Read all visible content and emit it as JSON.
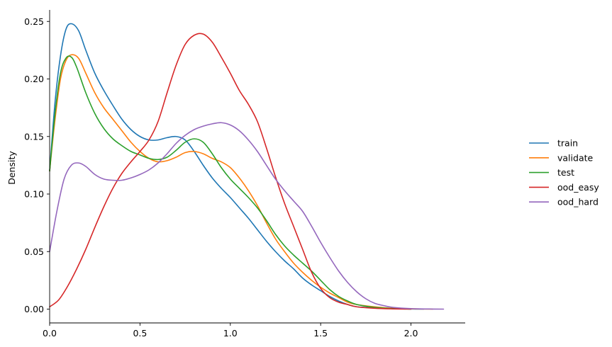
{
  "chart_data": {
    "type": "line",
    "title": "",
    "xlabel": "",
    "ylabel": "Density",
    "xlim": [
      0.0,
      2.3
    ],
    "ylim": [
      -0.012,
      0.26
    ],
    "xticks": [
      0.0,
      0.5,
      1.0,
      1.5,
      2.0
    ],
    "xtick_labels": [
      "0.0",
      "0.5",
      "1.0",
      "1.5",
      "2.0"
    ],
    "yticks": [
      0.0,
      0.05,
      0.1,
      0.15,
      0.2,
      0.25
    ],
    "ytick_labels": [
      "0.00",
      "0.05",
      "0.10",
      "0.15",
      "0.20",
      "0.25"
    ],
    "grid": false,
    "legend_position": "right",
    "series": [
      {
        "name": "train",
        "color": "#1f77b4",
        "points": [
          [
            0.0,
            0.12
          ],
          [
            0.03,
            0.18
          ],
          [
            0.06,
            0.22
          ],
          [
            0.09,
            0.243
          ],
          [
            0.12,
            0.248
          ],
          [
            0.16,
            0.242
          ],
          [
            0.2,
            0.225
          ],
          [
            0.25,
            0.205
          ],
          [
            0.3,
            0.19
          ],
          [
            0.35,
            0.177
          ],
          [
            0.4,
            0.165
          ],
          [
            0.45,
            0.156
          ],
          [
            0.5,
            0.15
          ],
          [
            0.55,
            0.147
          ],
          [
            0.6,
            0.147
          ],
          [
            0.65,
            0.149
          ],
          [
            0.7,
            0.15
          ],
          [
            0.75,
            0.147
          ],
          [
            0.8,
            0.137
          ],
          [
            0.85,
            0.125
          ],
          [
            0.9,
            0.114
          ],
          [
            0.95,
            0.105
          ],
          [
            1.0,
            0.097
          ],
          [
            1.05,
            0.088
          ],
          [
            1.1,
            0.079
          ],
          [
            1.15,
            0.069
          ],
          [
            1.2,
            0.059
          ],
          [
            1.25,
            0.05
          ],
          [
            1.3,
            0.042
          ],
          [
            1.35,
            0.035
          ],
          [
            1.4,
            0.027
          ],
          [
            1.45,
            0.021
          ],
          [
            1.5,
            0.016
          ],
          [
            1.55,
            0.011
          ],
          [
            1.6,
            0.007
          ],
          [
            1.65,
            0.004
          ],
          [
            1.7,
            0.002
          ],
          [
            1.8,
            0.001
          ],
          [
            1.9,
            0.0005
          ],
          [
            2.0,
            0.0001
          ],
          [
            2.07,
            0.0
          ]
        ]
      },
      {
        "name": "validate",
        "color": "#ff7f0e",
        "points": [
          [
            0.0,
            0.12
          ],
          [
            0.03,
            0.165
          ],
          [
            0.06,
            0.2
          ],
          [
            0.09,
            0.216
          ],
          [
            0.12,
            0.221
          ],
          [
            0.16,
            0.218
          ],
          [
            0.2,
            0.205
          ],
          [
            0.25,
            0.188
          ],
          [
            0.3,
            0.175
          ],
          [
            0.35,
            0.165
          ],
          [
            0.4,
            0.155
          ],
          [
            0.45,
            0.145
          ],
          [
            0.5,
            0.137
          ],
          [
            0.55,
            0.131
          ],
          [
            0.6,
            0.128
          ],
          [
            0.65,
            0.129
          ],
          [
            0.7,
            0.132
          ],
          [
            0.75,
            0.136
          ],
          [
            0.8,
            0.137
          ],
          [
            0.85,
            0.135
          ],
          [
            0.9,
            0.131
          ],
          [
            0.95,
            0.128
          ],
          [
            1.0,
            0.123
          ],
          [
            1.05,
            0.114
          ],
          [
            1.1,
            0.103
          ],
          [
            1.15,
            0.09
          ],
          [
            1.2,
            0.075
          ],
          [
            1.25,
            0.061
          ],
          [
            1.3,
            0.05
          ],
          [
            1.35,
            0.04
          ],
          [
            1.4,
            0.032
          ],
          [
            1.45,
            0.025
          ],
          [
            1.5,
            0.019
          ],
          [
            1.55,
            0.014
          ],
          [
            1.6,
            0.01
          ],
          [
            1.65,
            0.006
          ],
          [
            1.7,
            0.004
          ],
          [
            1.8,
            0.002
          ],
          [
            1.9,
            0.0007
          ],
          [
            2.0,
            0.0002
          ],
          [
            2.12,
            0.0
          ]
        ]
      },
      {
        "name": "test",
        "color": "#2ca02c",
        "points": [
          [
            0.0,
            0.12
          ],
          [
            0.03,
            0.17
          ],
          [
            0.06,
            0.205
          ],
          [
            0.09,
            0.218
          ],
          [
            0.12,
            0.219
          ],
          [
            0.15,
            0.21
          ],
          [
            0.2,
            0.188
          ],
          [
            0.25,
            0.17
          ],
          [
            0.3,
            0.157
          ],
          [
            0.35,
            0.148
          ],
          [
            0.4,
            0.142
          ],
          [
            0.45,
            0.137
          ],
          [
            0.5,
            0.134
          ],
          [
            0.55,
            0.131
          ],
          [
            0.6,
            0.13
          ],
          [
            0.65,
            0.132
          ],
          [
            0.7,
            0.138
          ],
          [
            0.75,
            0.145
          ],
          [
            0.8,
            0.148
          ],
          [
            0.85,
            0.145
          ],
          [
            0.9,
            0.135
          ],
          [
            0.95,
            0.123
          ],
          [
            1.0,
            0.113
          ],
          [
            1.05,
            0.105
          ],
          [
            1.1,
            0.097
          ],
          [
            1.15,
            0.088
          ],
          [
            1.2,
            0.077
          ],
          [
            1.25,
            0.065
          ],
          [
            1.3,
            0.055
          ],
          [
            1.35,
            0.047
          ],
          [
            1.4,
            0.04
          ],
          [
            1.45,
            0.033
          ],
          [
            1.5,
            0.025
          ],
          [
            1.55,
            0.017
          ],
          [
            1.6,
            0.011
          ],
          [
            1.65,
            0.007
          ],
          [
            1.7,
            0.004
          ],
          [
            1.8,
            0.0015
          ],
          [
            1.9,
            0.0005
          ],
          [
            2.0,
            0.0
          ]
        ]
      },
      {
        "name": "ood_easy",
        "color": "#d62728",
        "points": [
          [
            0.0,
            0.002
          ],
          [
            0.05,
            0.008
          ],
          [
            0.1,
            0.02
          ],
          [
            0.15,
            0.035
          ],
          [
            0.2,
            0.052
          ],
          [
            0.25,
            0.071
          ],
          [
            0.3,
            0.089
          ],
          [
            0.35,
            0.105
          ],
          [
            0.4,
            0.118
          ],
          [
            0.45,
            0.128
          ],
          [
            0.5,
            0.137
          ],
          [
            0.55,
            0.147
          ],
          [
            0.6,
            0.163
          ],
          [
            0.65,
            0.188
          ],
          [
            0.7,
            0.212
          ],
          [
            0.75,
            0.23
          ],
          [
            0.8,
            0.238
          ],
          [
            0.85,
            0.239
          ],
          [
            0.9,
            0.232
          ],
          [
            0.95,
            0.219
          ],
          [
            1.0,
            0.205
          ],
          [
            1.05,
            0.19
          ],
          [
            1.1,
            0.178
          ],
          [
            1.15,
            0.163
          ],
          [
            1.2,
            0.14
          ],
          [
            1.25,
            0.115
          ],
          [
            1.3,
            0.092
          ],
          [
            1.35,
            0.072
          ],
          [
            1.4,
            0.052
          ],
          [
            1.45,
            0.032
          ],
          [
            1.5,
            0.018
          ],
          [
            1.55,
            0.01
          ],
          [
            1.6,
            0.006
          ],
          [
            1.65,
            0.004
          ],
          [
            1.7,
            0.002
          ],
          [
            1.8,
            0.0007
          ],
          [
            1.9,
            0.0002
          ],
          [
            2.0,
            0.0
          ]
        ]
      },
      {
        "name": "ood_hard",
        "color": "#9467bd",
        "points": [
          [
            0.0,
            0.05
          ],
          [
            0.04,
            0.085
          ],
          [
            0.08,
            0.113
          ],
          [
            0.12,
            0.125
          ],
          [
            0.16,
            0.127
          ],
          [
            0.2,
            0.124
          ],
          [
            0.25,
            0.117
          ],
          [
            0.3,
            0.113
          ],
          [
            0.35,
            0.112
          ],
          [
            0.4,
            0.112
          ],
          [
            0.45,
            0.114
          ],
          [
            0.5,
            0.117
          ],
          [
            0.55,
            0.121
          ],
          [
            0.6,
            0.127
          ],
          [
            0.65,
            0.135
          ],
          [
            0.7,
            0.144
          ],
          [
            0.75,
            0.151
          ],
          [
            0.8,
            0.156
          ],
          [
            0.85,
            0.159
          ],
          [
            0.9,
            0.161
          ],
          [
            0.95,
            0.162
          ],
          [
            1.0,
            0.16
          ],
          [
            1.05,
            0.155
          ],
          [
            1.1,
            0.147
          ],
          [
            1.15,
            0.137
          ],
          [
            1.2,
            0.125
          ],
          [
            1.25,
            0.113
          ],
          [
            1.3,
            0.103
          ],
          [
            1.35,
            0.094
          ],
          [
            1.4,
            0.085
          ],
          [
            1.45,
            0.072
          ],
          [
            1.5,
            0.058
          ],
          [
            1.55,
            0.045
          ],
          [
            1.6,
            0.033
          ],
          [
            1.65,
            0.023
          ],
          [
            1.7,
            0.015
          ],
          [
            1.75,
            0.009
          ],
          [
            1.8,
            0.005
          ],
          [
            1.85,
            0.003
          ],
          [
            1.9,
            0.0015
          ],
          [
            2.0,
            0.0004
          ],
          [
            2.1,
            0.0001
          ],
          [
            2.18,
            0.0
          ]
        ]
      }
    ]
  }
}
